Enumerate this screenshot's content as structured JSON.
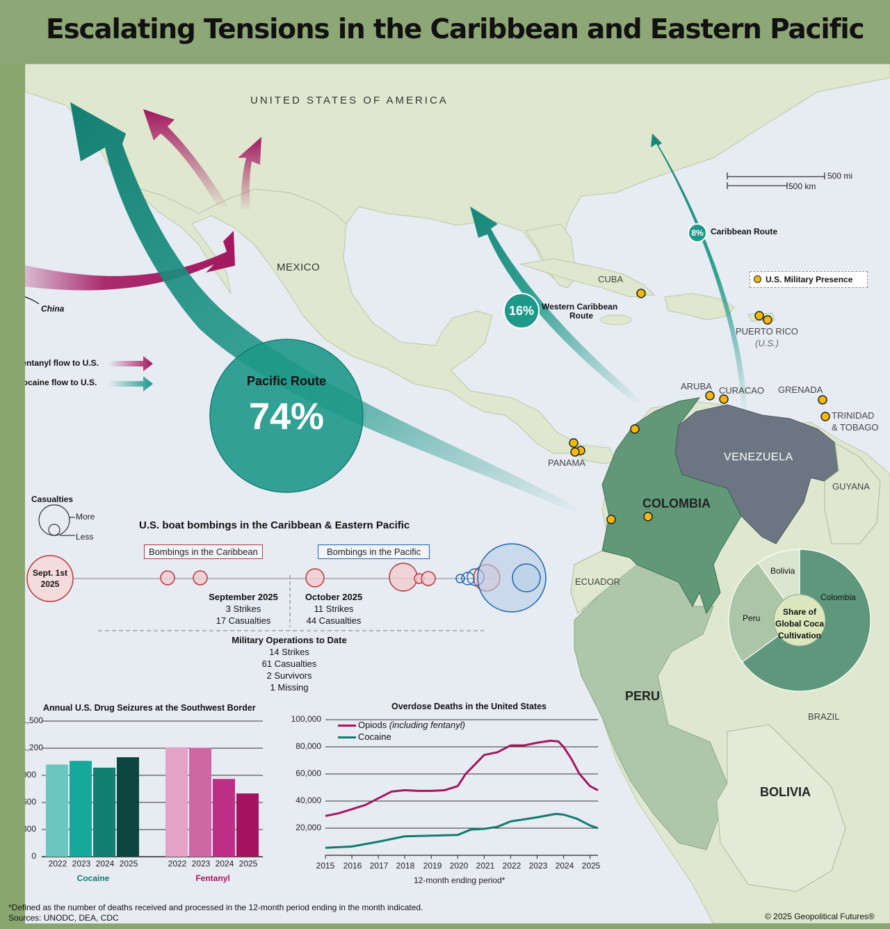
{
  "title": "Escalating Tensions in the Caribbean and Eastern Pacific",
  "map": {
    "countries": {
      "usa": "UNITED STATES OF AMERICA",
      "mexico": "MEXICO",
      "cuba": "CUBA",
      "puerto_rico": "PUERTO RICO",
      "puerto_rico_note": "(U.S.)",
      "aruba": "ARUBA",
      "curacao": "CURACAO",
      "grenada": "GRENADA",
      "trinidad_line1": "TRINIDAD",
      "trinidad_line2": "& TOBAGO",
      "panama": "PANAMA",
      "venezuela": "VENEZUELA",
      "guyana": "GUYANA",
      "colombia": "COLOMBIA",
      "ecuador": "ECUADOR",
      "peru": "PERU",
      "brazil": "BRAZIL",
      "bolivia": "BOLIVIA"
    },
    "china_label": "China",
    "scale": {
      "miles": "500 mi",
      "km": "500 km"
    },
    "legend": {
      "fentanyl": "Fentanyl flow to U.S.",
      "cocaine": "Cocaine flow to U.S.",
      "military": "U.S. Military Presence"
    },
    "routes": {
      "pacific": {
        "name": "Pacific Route",
        "pct": "74%"
      },
      "western_caribbean": {
        "name_line1": "Western Caribbean",
        "name_line2": "Route",
        "pct": "16%"
      },
      "caribbean": {
        "name": "Caribbean Route",
        "pct": "8%"
      }
    },
    "colors": {
      "fentanyl": "#a3175f",
      "cocaine": "#1e9889",
      "military": "#f2b90c"
    }
  },
  "coca_share": {
    "title_line1": "Share of",
    "title_line2": "Global Coca",
    "title_line3": "Cultivation",
    "slices": [
      {
        "name": "Colombia",
        "share": 0.65,
        "color": "#5e977c"
      },
      {
        "name": "Peru",
        "share": 0.25,
        "color": "#abc6a7"
      },
      {
        "name": "Bolivia",
        "share": 0.1,
        "color": "#dae6cf"
      }
    ]
  },
  "bombings": {
    "title": "U.S. boat bombings in the Caribbean & Eastern Pacific",
    "casualties_legend": {
      "title": "Casualties",
      "more": "More",
      "less": "Less"
    },
    "start_line1": "Sept. 1st",
    "start_line2": "2025",
    "caribbean_label": "Bombings in the Caribbean",
    "pacific_label": "Bombings in the Pacific",
    "september": {
      "title": "September 2025",
      "strikes": "3 Strikes",
      "casualties": "17 Casualties"
    },
    "october": {
      "title": "October 2025",
      "strikes": "11 Strikes",
      "casualties": "44 Casualties"
    },
    "total": {
      "title": "Military Operations to Date",
      "strikes": "14 Strikes",
      "casualties": "61 Casualties",
      "survivors": "2 Survivors",
      "missing": "1 Missing"
    }
  },
  "chart_data": [
    {
      "type": "bar",
      "title": "Annual U.S. Drug Seizures at the Southwest Border",
      "ylim": [
        0,
        1500
      ],
      "yticks": [
        "0",
        "300",
        "600",
        "900",
        "1,200",
        "1,500"
      ],
      "groups": [
        {
          "name": "Cocaine",
          "categories": [
            "2022",
            "2023",
            "2024",
            "2025"
          ],
          "values": [
            1020,
            1060,
            985,
            1100
          ],
          "colors": [
            "#6cc6c0",
            "#16a89a",
            "#127f74",
            "#0b4640"
          ]
        },
        {
          "name": "Fentanyl",
          "categories": [
            "2022",
            "2023",
            "2024",
            "2025"
          ],
          "values": [
            1210,
            1205,
            860,
            700
          ],
          "colors": [
            "#e2a3c6",
            "#cf67a4",
            "#bd2f86",
            "#a4135f"
          ]
        }
      ]
    },
    {
      "type": "line",
      "title": "Overdose Deaths in the United States",
      "xlabel": "12-month ending period*",
      "xticks": [
        "2015",
        "2016",
        "2017",
        "2018",
        "2019",
        "2020",
        "2021",
        "2022",
        "2023",
        "2024",
        "2025"
      ],
      "yticks": [
        "20,000",
        "40,000",
        "60,000",
        "80,000",
        "100,000"
      ],
      "ylim": [
        0,
        100000
      ],
      "xlim": [
        2015,
        2025.3
      ],
      "series": [
        {
          "name": "Opiods",
          "name_note": "(including fentanyl)",
          "color": "#a3175f",
          "x": [
            2015,
            2015.5,
            2016,
            2016.5,
            2017,
            2017.5,
            2018,
            2018.5,
            2019,
            2019.5,
            2020,
            2020.3,
            2020.6,
            2021,
            2021.5,
            2022,
            2022.5,
            2023,
            2023.5,
            2023.8,
            2024,
            2024.3,
            2024.6,
            2025,
            2025.3
          ],
          "values": [
            29000,
            31000,
            34000,
            37000,
            42000,
            47000,
            48000,
            47500,
            47500,
            48000,
            51000,
            60000,
            66000,
            74000,
            76000,
            81000,
            81000,
            83000,
            84500,
            84000,
            80000,
            71000,
            60000,
            51000,
            48000
          ]
        },
        {
          "name": "Cocaine",
          "color": "#137a6e",
          "x": [
            2015,
            2016,
            2017,
            2018,
            2019,
            2020,
            2020.5,
            2021,
            2021.5,
            2022,
            2023,
            2023.7,
            2024,
            2024.5,
            2025,
            2025.3
          ],
          "values": [
            5500,
            6500,
            10000,
            14000,
            14500,
            15000,
            19000,
            19500,
            21000,
            25000,
            28000,
            30500,
            30000,
            27000,
            22000,
            20000
          ]
        }
      ]
    }
  ],
  "footnote": "*Defined as the number of deaths received and processed in the 12-month period ending in the month indicated.",
  "sources": "Sources: UNODC, DEA, CDC",
  "copyright": "© 2025 Geopolitical Futures®"
}
